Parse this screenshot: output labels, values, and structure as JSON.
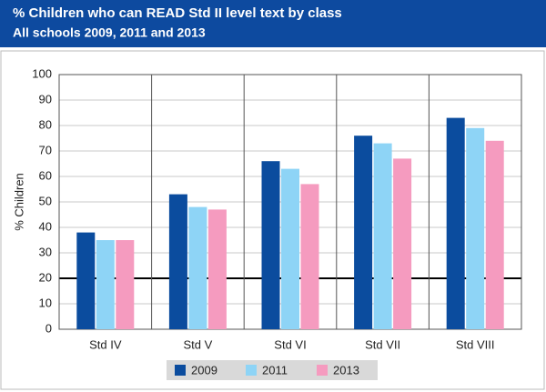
{
  "chart_data": {
    "type": "bar",
    "title": "% Children who can READ Std II level text by class",
    "subtitle": "All schools 2009, 2011 and 2013",
    "ylabel": "% Children",
    "categories": [
      "Std IV",
      "Std V",
      "Std VI",
      "Std VII",
      "Std VIII"
    ],
    "series": [
      {
        "name": "2009",
        "color": "#0b4c9e",
        "values": [
          38,
          53,
          66,
          76,
          83
        ]
      },
      {
        "name": "2011",
        "color": "#8ed4f6",
        "values": [
          35,
          48,
          63,
          73,
          79
        ]
      },
      {
        "name": "2013",
        "color": "#f59bbf",
        "values": [
          35,
          47,
          57,
          67,
          74
        ]
      }
    ],
    "ylim": [
      0,
      100
    ],
    "yticks": [
      0,
      10,
      20,
      30,
      40,
      50,
      60,
      70,
      80,
      90,
      100
    ],
    "grid": true,
    "reference_line": 20
  }
}
